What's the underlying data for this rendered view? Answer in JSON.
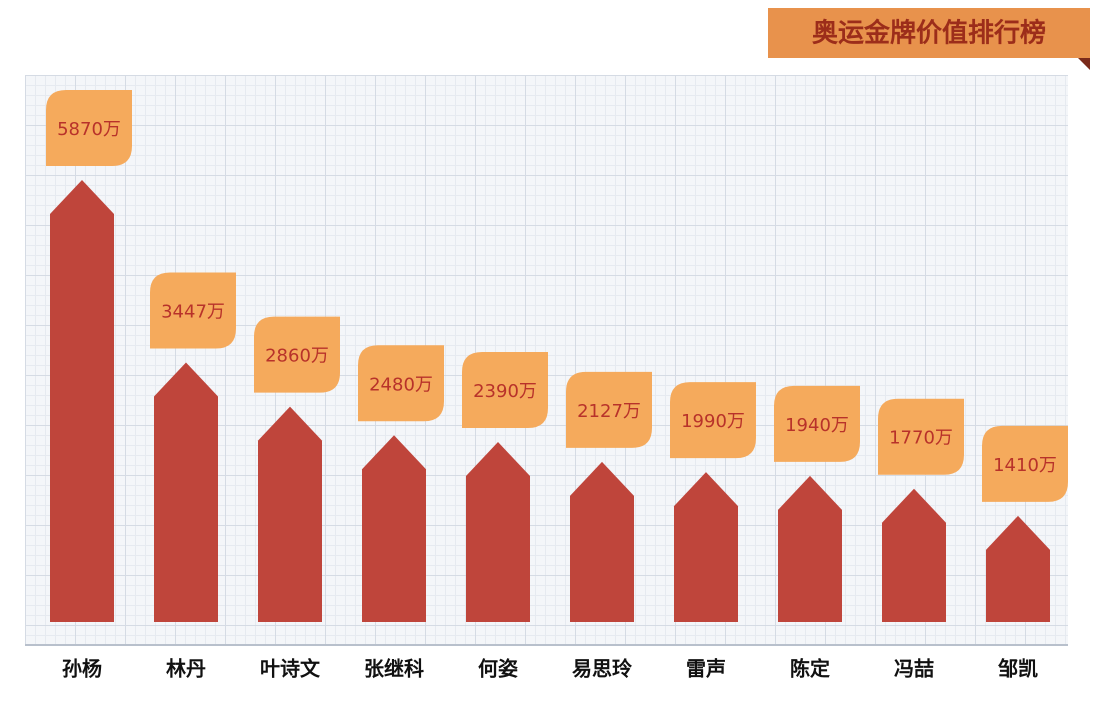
{
  "chart_data": {
    "type": "bar",
    "title": "奥运金牌价值排行榜",
    "categories": [
      "孙杨",
      "林丹",
      "叶诗文",
      "张继科",
      "何姿",
      "易思玲",
      "雷声",
      "陈定",
      "冯喆",
      "邹凯"
    ],
    "values": [
      5870,
      3447,
      2860,
      2480,
      2390,
      2127,
      1990,
      1940,
      1770,
      1410
    ],
    "value_labels": [
      "5870万",
      "3447万",
      "2860万",
      "2480万",
      "2390万",
      "2127万",
      "1990万",
      "1940万",
      "1770万",
      "1410万"
    ],
    "color": "#bf453b",
    "label_color": "#f5aa5c"
  }
}
